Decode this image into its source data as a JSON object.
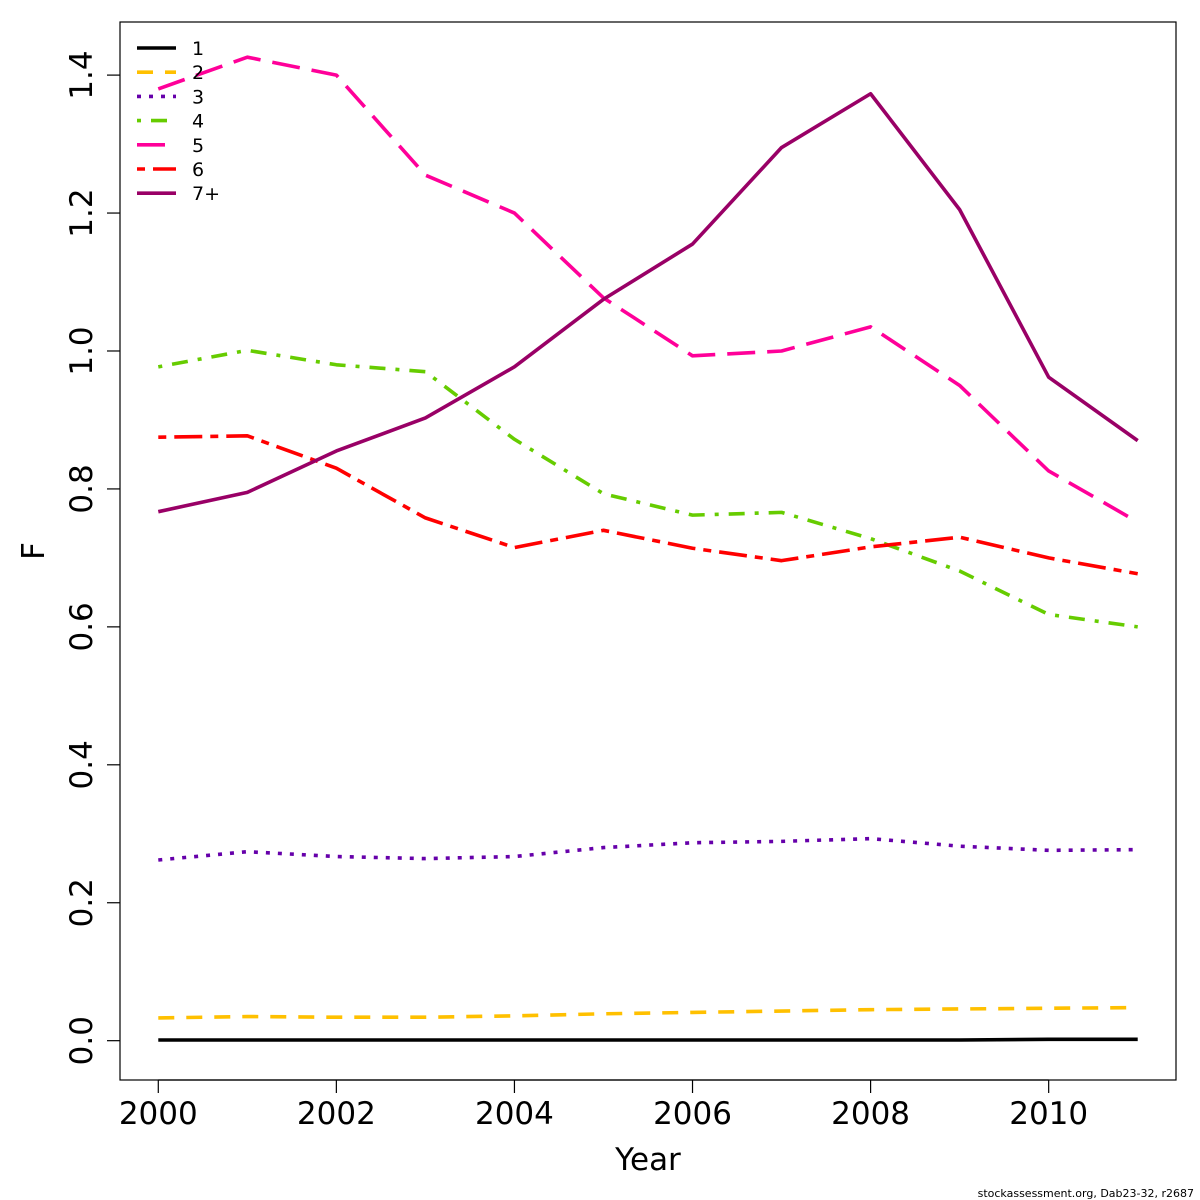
{
  "chart_data": {
    "type": "line",
    "xlabel": "Year",
    "ylabel": "F",
    "xlim": [
      1999.57,
      2011.43
    ],
    "ylim": [
      -0.057,
      1.477
    ],
    "x_ticks": [
      2000,
      2002,
      2004,
      2006,
      2008,
      2010
    ],
    "y_ticks": [
      0.0,
      0.2,
      0.4,
      0.6,
      0.8,
      1.0,
      1.2,
      1.4
    ],
    "x_tick_labels": [
      "2000",
      "2002",
      "2004",
      "2006",
      "2008",
      "2010"
    ],
    "y_tick_labels": [
      "0.0",
      "0.2",
      "0.4",
      "0.6",
      "0.8",
      "1.0",
      "1.2",
      "1.4"
    ],
    "grid": false,
    "legend_position": "top-left",
    "x": [
      2000,
      2001,
      2002,
      2003,
      2004,
      2005,
      2006,
      2007,
      2008,
      2009,
      2010,
      2011
    ],
    "series": [
      {
        "name": "1",
        "color": "#000000",
        "dash": "solid",
        "values": [
          0.001,
          0.001,
          0.001,
          0.001,
          0.001,
          0.001,
          0.001,
          0.001,
          0.001,
          0.001,
          0.002,
          0.002
        ]
      },
      {
        "name": "2",
        "color": "#FFC000",
        "dash": "dashed",
        "values": [
          0.033,
          0.035,
          0.034,
          0.034,
          0.036,
          0.039,
          0.041,
          0.043,
          0.045,
          0.046,
          0.047,
          0.048
        ]
      },
      {
        "name": "3",
        "color": "#6600AA",
        "dash": "dotted",
        "values": [
          0.262,
          0.274,
          0.267,
          0.264,
          0.267,
          0.28,
          0.287,
          0.289,
          0.293,
          0.282,
          0.276,
          0.277
        ]
      },
      {
        "name": "4",
        "color": "#66CC00",
        "dash": "dotdash",
        "values": [
          0.977,
          1.001,
          0.98,
          0.97,
          0.872,
          0.793,
          0.762,
          0.766,
          0.728,
          0.681,
          0.618,
          0.6
        ]
      },
      {
        "name": "5",
        "color": "#FF0099",
        "dash": "longdash",
        "values": [
          1.38,
          1.426,
          1.4,
          1.255,
          1.2,
          1.077,
          0.993,
          1.0,
          1.035,
          0.95,
          0.826,
          0.752
        ]
      },
      {
        "name": "6",
        "color": "#FF0000",
        "dash": "twodash",
        "values": [
          0.875,
          0.877,
          0.83,
          0.758,
          0.715,
          0.74,
          0.714,
          0.696,
          0.716,
          0.73,
          0.7,
          0.677
        ]
      },
      {
        "name": "7+",
        "color": "#990066",
        "dash": "solid",
        "values": [
          0.767,
          0.795,
          0.855,
          0.903,
          0.977,
          1.075,
          1.155,
          1.295,
          1.373,
          1.205,
          0.962,
          0.87
        ]
      }
    ]
  },
  "footer": {
    "credit": "stockassessment.org, Dab23-32, r2687"
  }
}
